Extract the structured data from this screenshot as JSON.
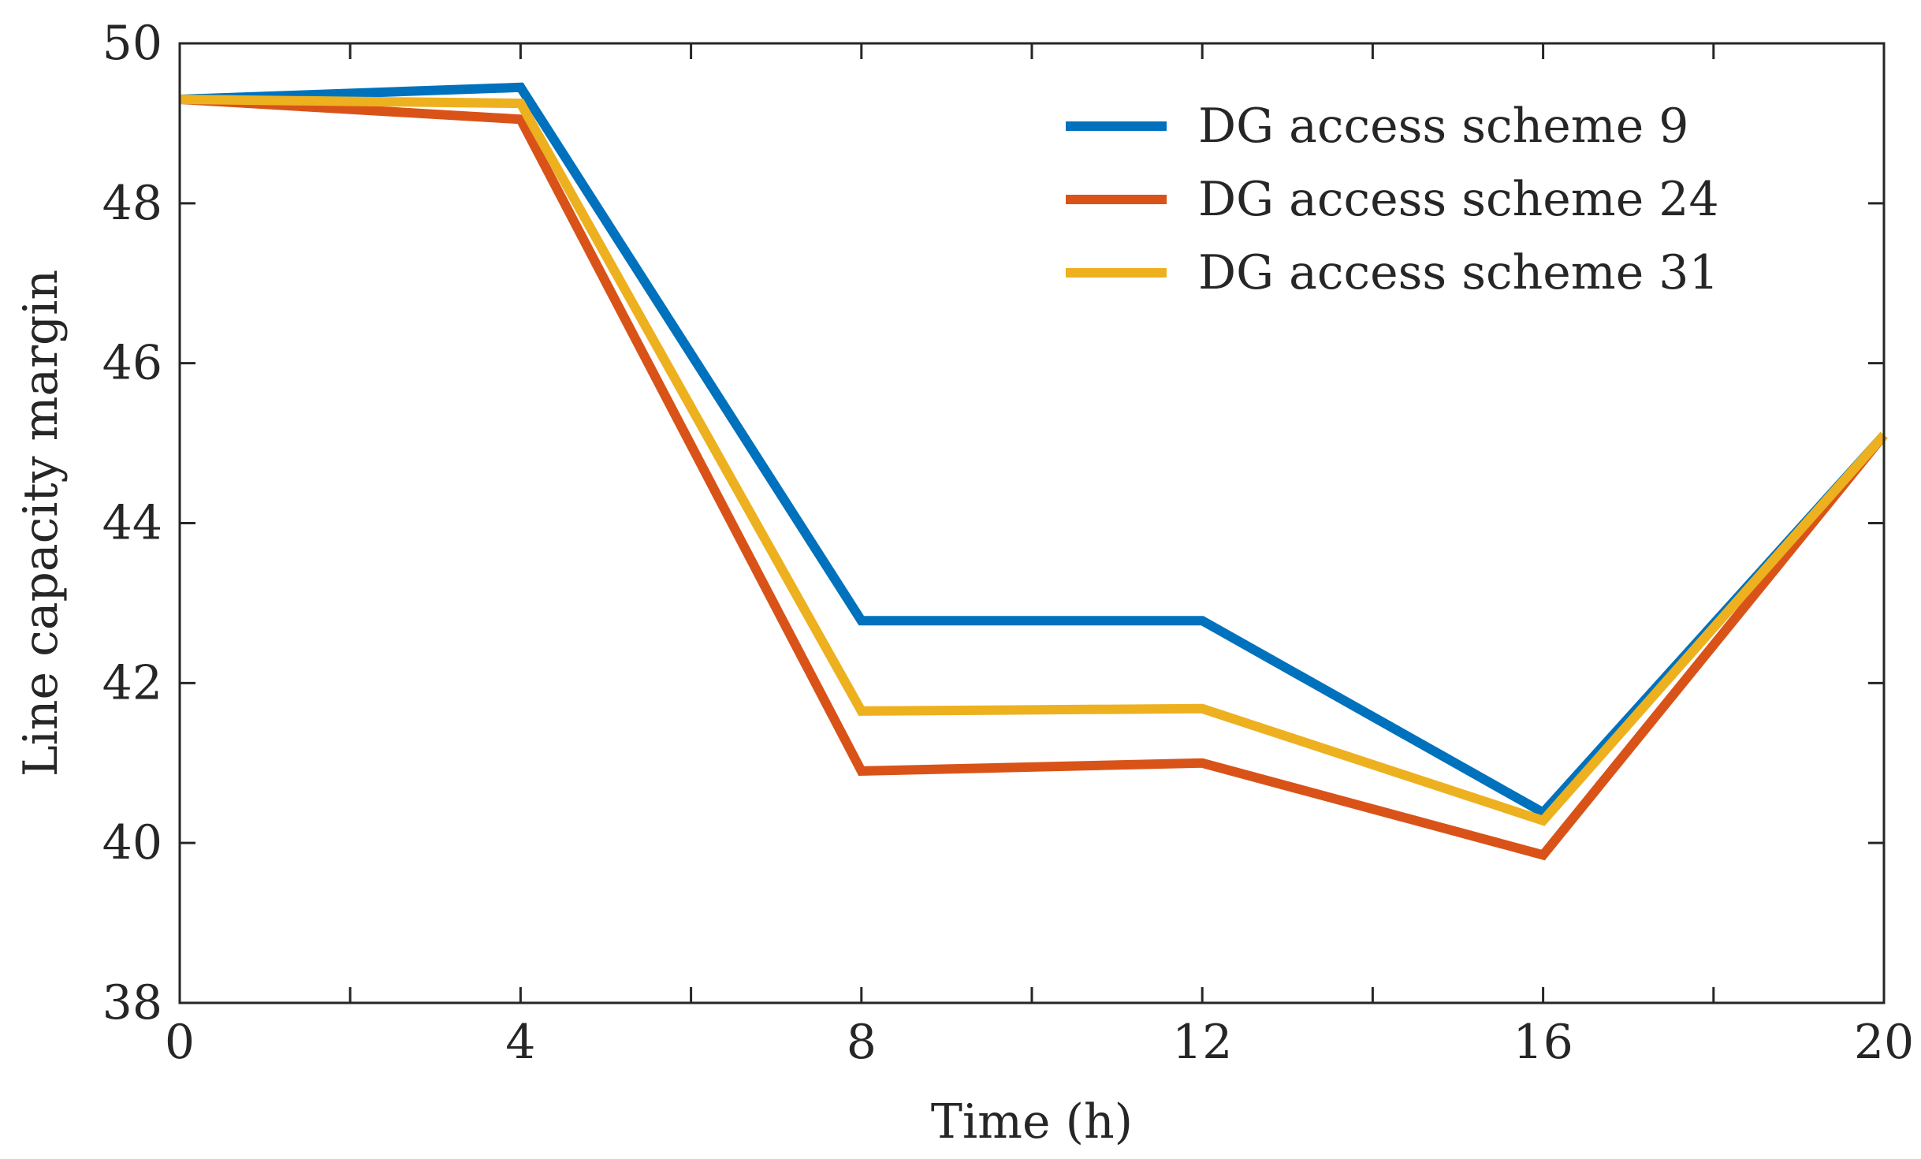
{
  "chart_data": {
    "type": "line",
    "title": "",
    "xlabel": "Time (h)",
    "ylabel": "Line capacity margin",
    "xlim": [
      0,
      20
    ],
    "ylim": [
      38,
      50
    ],
    "xticks": [
      0,
      4,
      8,
      12,
      16,
      20
    ],
    "xminor": [
      2,
      6,
      10,
      14,
      18
    ],
    "yticks": [
      38,
      40,
      42,
      44,
      46,
      48,
      50
    ],
    "grid": false,
    "legend_position": "top-right",
    "series": [
      {
        "name": "DG access scheme 9",
        "color": "#0072BD",
        "x": [
          0,
          4,
          8,
          12,
          16,
          20
        ],
        "y": [
          49.3,
          49.45,
          42.78,
          42.78,
          40.38,
          45.1
        ]
      },
      {
        "name": "DG access scheme 24",
        "color": "#D95319",
        "x": [
          0,
          4,
          8,
          12,
          16,
          20
        ],
        "y": [
          49.3,
          49.05,
          40.9,
          41.0,
          39.85,
          45.1
        ]
      },
      {
        "name": "DG access scheme 31",
        "color": "#EDB120",
        "x": [
          0,
          4,
          8,
          12,
          16,
          20
        ],
        "y": [
          49.3,
          49.25,
          41.65,
          41.68,
          40.28,
          45.1
        ]
      }
    ]
  }
}
